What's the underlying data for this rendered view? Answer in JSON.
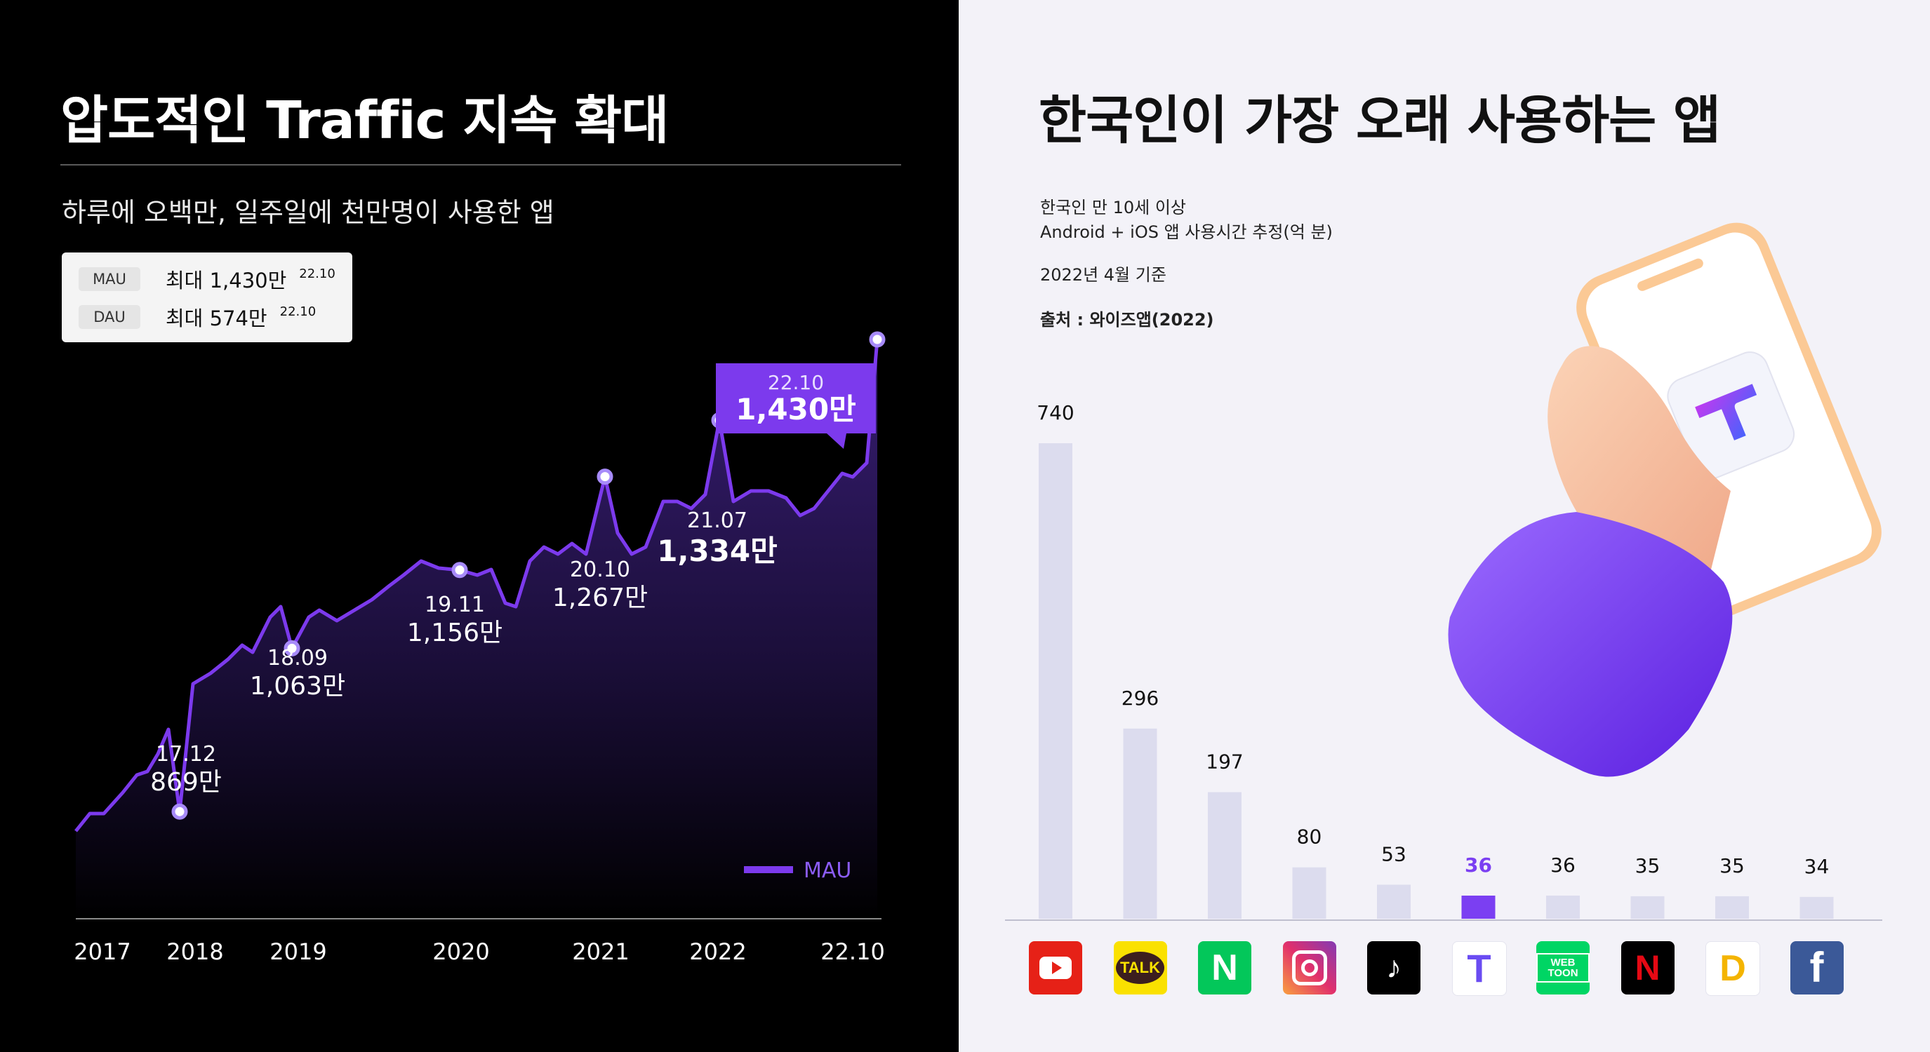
{
  "left": {
    "title": "압도적인 Traffic 지속 확대",
    "subtitle": "하루에 오백만, 일주일에 천만명이 사용한 앱",
    "stats": [
      {
        "tag": "MAU",
        "value": "최대 1,430만",
        "date": "22.10"
      },
      {
        "tag": "DAU",
        "value": "최대 574만",
        "date": "22.10"
      }
    ],
    "legend": "MAU",
    "callout": {
      "date": "22.10",
      "value": "1,430만"
    }
  },
  "right": {
    "title": "한국인이 가장 오래 사용하는 앱",
    "notes": [
      "한국인 만 10세 이상",
      "Android + iOS 앱 사용시간 추정(억 분)",
      "2022년 4월 기준",
      "출처 : 와이즈앱(2022)"
    ],
    "apps": [
      {
        "icon": "youtube-icon"
      },
      {
        "icon": "kakaotalk-icon",
        "text": "TALK"
      },
      {
        "icon": "naver-icon",
        "text": "N"
      },
      {
        "icon": "instagram-icon"
      },
      {
        "icon": "tiktok-icon",
        "text": "♪"
      },
      {
        "icon": "t-app-icon",
        "text": "T"
      },
      {
        "icon": "webtoon-icon",
        "text": "WEB TOON"
      },
      {
        "icon": "netflix-icon",
        "text": "N"
      },
      {
        "icon": "d-app-icon",
        "text": "D"
      },
      {
        "icon": "facebook-icon",
        "text": "f"
      }
    ]
  },
  "chart_data": [
    {
      "type": "area",
      "x_ticks": [
        "2017",
        "2018",
        "2019",
        "2020",
        "2021",
        "2022",
        "22.10"
      ],
      "series": [
        {
          "name": "MAU"
        }
      ],
      "points": [
        {
          "date": "17.12",
          "label": "869만",
          "value": 869
        },
        {
          "date": "18.09",
          "label": "1,063만",
          "value": 1063
        },
        {
          "date": "19.11",
          "label": "1,156만",
          "value": 1156
        },
        {
          "date": "20.10",
          "label": "1,267만",
          "value": 1267
        },
        {
          "date": "21.07",
          "label": "1,334만",
          "value": 1334
        },
        {
          "date": "22.10",
          "label": "1,430만",
          "value": 1430
        }
      ],
      "colors": {
        "line": "#7c3aed",
        "fill_top": "#3b1f7a",
        "marker": "#a78bfa"
      }
    },
    {
      "type": "bar",
      "categories": [
        "YouTube",
        "KakaoTalk",
        "Naver",
        "Instagram",
        "TikTok",
        "T",
        "Webtoon",
        "Netflix",
        "D",
        "Facebook"
      ],
      "values": [
        740,
        296,
        197,
        80,
        53,
        36,
        36,
        35,
        35,
        34
      ],
      "highlight_index": 5,
      "colors": {
        "bar": "#dcdcee",
        "highlight": "#7b3ff2"
      }
    }
  ]
}
